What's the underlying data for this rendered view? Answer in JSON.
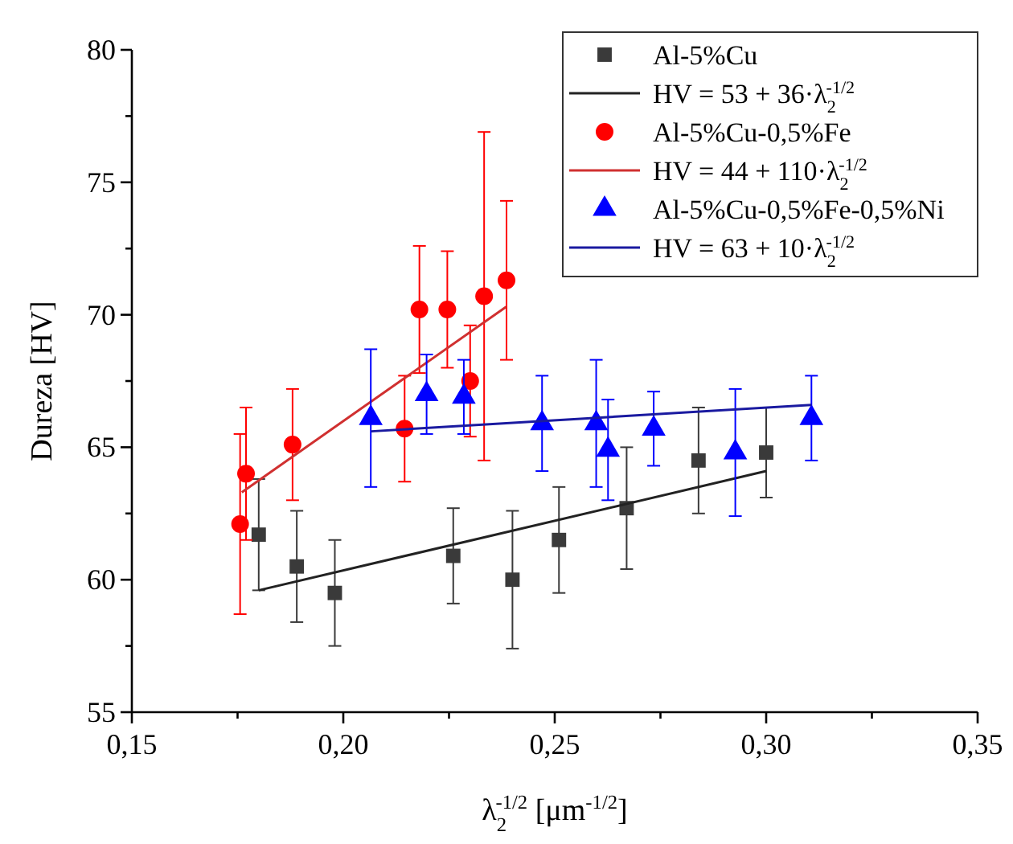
{
  "chart_data": {
    "type": "scatter",
    "xlabel": "λ$_{2}$$^{-1/2}$ [μm$^{-1/2}$]",
    "ylabel": "Dureza [HV]",
    "xlim": [
      0.15,
      0.35
    ],
    "ylim": [
      55,
      80
    ],
    "xticks": [
      {
        "value": 0.15,
        "label": "0,15"
      },
      {
        "value": 0.175,
        "label": null
      },
      {
        "value": 0.2,
        "label": "0,20"
      },
      {
        "value": 0.225,
        "label": null
      },
      {
        "value": 0.25,
        "label": "0,25"
      },
      {
        "value": 0.275,
        "label": null
      },
      {
        "value": 0.3,
        "label": "0,30"
      },
      {
        "value": 0.325,
        "label": null
      },
      {
        "value": 0.35,
        "label": "0,35"
      }
    ],
    "yticks": [
      55,
      {
        "value": 57.5,
        "label": null
      },
      60,
      {
        "value": 62.5,
        "label": null
      },
      65,
      {
        "value": 67.5,
        "label": null
      },
      70,
      {
        "value": 72.5,
        "label": null
      },
      75,
      {
        "value": 77.5,
        "label": null
      },
      80
    ],
    "legend": "top right",
    "series": [
      {
        "name": "Al-5%Cu",
        "marker": "square",
        "color": "#3a3a3a",
        "x": [
          0.18,
          0.189,
          0.198,
          0.226,
          0.24,
          0.251,
          0.267,
          0.284,
          0.3
        ],
        "values": [
          61.7,
          60.5,
          59.5,
          60.9,
          60.0,
          61.5,
          62.7,
          64.5,
          64.8
        ],
        "errors": [
          2.1,
          2.1,
          2,
          1.8,
          2.6,
          2,
          2.3,
          2,
          1.7
        ]
      },
      {
        "name": "HV = 53 + 36·λ$_{2}$$^{-1/2}$",
        "type": "line",
        "marker": "none",
        "color": "#222222",
        "x": [
          0.18,
          0.3
        ],
        "values": [
          59.6,
          64.1
        ]
      },
      {
        "name": "Al-5%Cu-0,5%Fe",
        "marker": "circle",
        "color": "#ff0000",
        "x": [
          0.1756,
          0.177,
          0.188,
          0.2145,
          0.218,
          0.2246,
          0.23,
          0.2333,
          0.2386
        ],
        "values": [
          62.1,
          64.0,
          65.1,
          65.7,
          70.2,
          70.2,
          67.5,
          70.7,
          71.3
        ],
        "errors": [
          3.4,
          2.5,
          2.1,
          2,
          2.4,
          2.2,
          2.1,
          6.2,
          3
        ]
      },
      {
        "name": "HV = 44 + 110·λ$_{2}$$^{-1/2}$",
        "type": "line",
        "marker": "none",
        "color": "#d03030",
        "x": [
          0.176,
          0.2385
        ],
        "values": [
          63.3,
          70.3
        ]
      },
      {
        "name": "Al-5%Cu-0,5%Fe-0,5%Ni",
        "marker": "triangle",
        "color": "#0000ff",
        "x": [
          0.2065,
          0.2197,
          0.2285,
          0.247,
          0.2598,
          0.2626,
          0.2734,
          0.2927,
          0.3107
        ],
        "values": [
          66.1,
          67.0,
          66.9,
          65.9,
          65.9,
          64.9,
          65.7,
          64.8,
          66.1
        ],
        "errors": [
          2.6,
          1.5,
          1.4,
          1.8,
          2.4,
          1.9,
          1.4,
          2.4,
          1.6
        ]
      },
      {
        "name": "HV = 63 + 10·λ$_{2}$$^{-1/2}$",
        "type": "line",
        "marker": "none",
        "color": "#1a1aa0",
        "x": [
          0.2066,
          0.3107
        ],
        "values": [
          65.6,
          66.6
        ]
      }
    ]
  }
}
